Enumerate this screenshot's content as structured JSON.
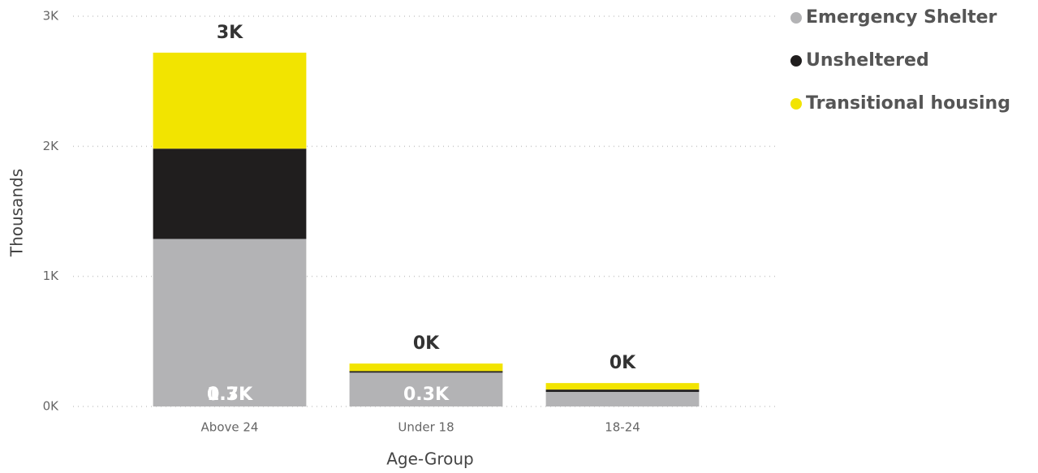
{
  "chart_data": {
    "type": "stacked-bar",
    "x_label": "Age-Group",
    "y_label": "Thousands",
    "categories": [
      "Above 24",
      "Under 18",
      "18-24"
    ],
    "series": [
      {
        "name": "Emergency Shelter",
        "color": "#b3b3b5",
        "values": [
          1288,
          260,
          112
        ],
        "value_labels": [
          "1.3K",
          "0.3K",
          null
        ]
      },
      {
        "name": "Unsheltered",
        "color": "#201e1e",
        "values": [
          694,
          12,
          18
        ],
        "value_labels": [
          "0.7K",
          null,
          null
        ]
      },
      {
        "name": "Transitional housing",
        "color": "#f2e400",
        "values": [
          738,
          58,
          50
        ],
        "value_labels": [
          "0.7K",
          null,
          null
        ]
      }
    ],
    "total_labels": [
      "3K",
      "0K",
      "0K"
    ],
    "ylim": [
      0,
      3000
    ],
    "yticks": [
      {
        "value": 0,
        "label": "0K"
      },
      {
        "value": 1000,
        "label": "1K"
      },
      {
        "value": 2000,
        "label": "2K"
      },
      {
        "value": 3000,
        "label": "3K"
      }
    ],
    "grid": true,
    "legend": "top-right"
  }
}
